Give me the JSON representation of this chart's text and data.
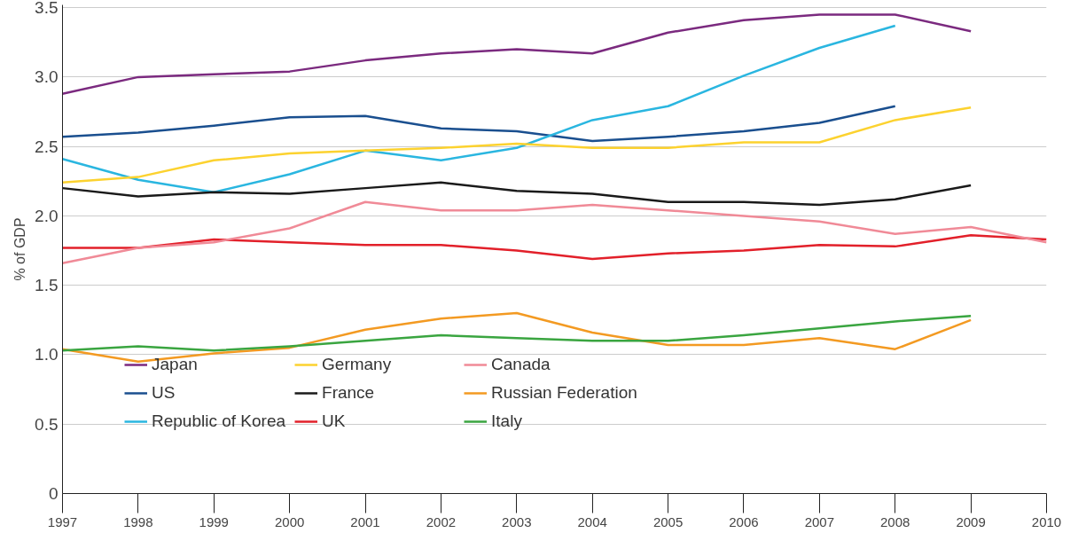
{
  "chart_data": {
    "type": "line",
    "ylabel": "% of GDP",
    "x": [
      1997,
      1998,
      1999,
      2000,
      2001,
      2002,
      2003,
      2004,
      2005,
      2006,
      2007,
      2008,
      2009,
      2010
    ],
    "xlim": [
      1997,
      2010
    ],
    "xticks": [
      1997,
      1998,
      1999,
      2000,
      2001,
      2002,
      2003,
      2004,
      2005,
      2006,
      2007,
      2008,
      2009,
      2010
    ],
    "ylim": [
      0,
      3.52
    ],
    "yticks": [
      0,
      0.5,
      {
        "value": 1,
        "label": "1.0"
      },
      1.5,
      {
        "value": 2,
        "label": "2.0"
      },
      2.5,
      {
        "value": 3,
        "label": "3.0"
      },
      3.5
    ],
    "grid": "y",
    "legend": "bottom left",
    "line_style": "solid",
    "series": [
      {
        "name": "Japan",
        "color": "#7b2a7f",
        "values": [
          2.88,
          3.0,
          3.02,
          3.04,
          3.12,
          3.17,
          3.2,
          3.17,
          3.32,
          3.41,
          3.45,
          3.45,
          3.33,
          null
        ]
      },
      {
        "name": "US",
        "color": "#1a4f8f",
        "values": [
          2.57,
          2.6,
          2.65,
          2.71,
          2.72,
          2.63,
          2.61,
          2.54,
          2.57,
          2.61,
          2.67,
          2.79,
          null,
          null
        ]
      },
      {
        "name": "Republic of Korea",
        "color": "#2ab6e0",
        "values": [
          2.41,
          2.26,
          2.17,
          2.3,
          2.47,
          2.4,
          2.49,
          2.69,
          2.79,
          3.01,
          3.21,
          3.37,
          null,
          null
        ]
      },
      {
        "name": "Germany",
        "color": "#fcd22f",
        "values": [
          2.24,
          2.28,
          2.4,
          2.45,
          2.47,
          2.49,
          2.52,
          2.49,
          2.49,
          2.53,
          2.53,
          2.69,
          2.78,
          null
        ]
      },
      {
        "name": "France",
        "color": "#1a1a1a",
        "values": [
          2.2,
          2.14,
          2.17,
          2.16,
          2.2,
          2.24,
          2.18,
          2.16,
          2.1,
          2.1,
          2.08,
          2.12,
          2.22,
          null
        ]
      },
      {
        "name": "UK",
        "color": "#e2202a",
        "values": [
          1.77,
          1.77,
          1.83,
          1.81,
          1.79,
          1.79,
          1.75,
          1.69,
          1.73,
          1.75,
          1.79,
          1.78,
          1.86,
          1.83
        ]
      },
      {
        "name": "Canada",
        "color": "#f08a97",
        "values": [
          1.66,
          1.77,
          1.81,
          1.91,
          2.1,
          2.04,
          2.04,
          2.08,
          2.04,
          2.0,
          1.96,
          1.87,
          1.92,
          1.81
        ]
      },
      {
        "name": "Russian Federation",
        "color": "#f39a22",
        "values": [
          1.04,
          0.95,
          1.01,
          1.05,
          1.18,
          1.26,
          1.3,
          1.16,
          1.07,
          1.07,
          1.12,
          1.04,
          1.25,
          null
        ]
      },
      {
        "name": "Italy",
        "color": "#3aa540",
        "values": [
          1.03,
          1.06,
          1.03,
          1.06,
          1.1,
          1.14,
          1.12,
          1.1,
          1.1,
          1.14,
          1.19,
          1.24,
          1.28,
          null
        ]
      }
    ]
  }
}
